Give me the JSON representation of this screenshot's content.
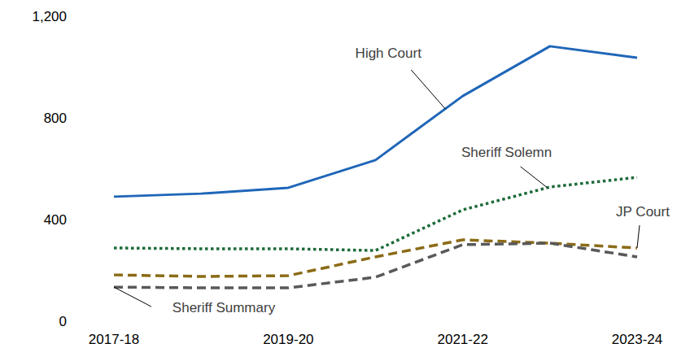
{
  "chart_data": {
    "type": "line",
    "categories": [
      "2017-18",
      null,
      "2019-20",
      null,
      "2021-22",
      null,
      "2023-24"
    ],
    "series": [
      {
        "name": "High Court",
        "color": "#1f66b8",
        "line_style": "solid",
        "values": [
          490,
          502,
          525,
          634,
          886,
          1082,
          1037
        ]
      },
      {
        "name": "Sheriff Solemn",
        "color": "#1d6b3a",
        "line_style": "dotted",
        "values": [
          288,
          285,
          285,
          278,
          438,
          528,
          566
        ]
      },
      {
        "name": "JP Court",
        "color": "#8b6b16",
        "line_style": "dashed",
        "values": [
          182,
          176,
          179,
          253,
          320,
          307,
          288
        ]
      },
      {
        "name": "Sheriff Summary",
        "color": "#595959",
        "line_style": "dashed",
        "values": [
          134,
          131,
          131,
          173,
          301,
          307,
          253
        ]
      }
    ],
    "ylim": [
      0,
      1200
    ],
    "yticks": [
      0,
      400,
      800,
      {
        "value": 1200,
        "label": "1,200"
      }
    ],
    "grid": false
  }
}
